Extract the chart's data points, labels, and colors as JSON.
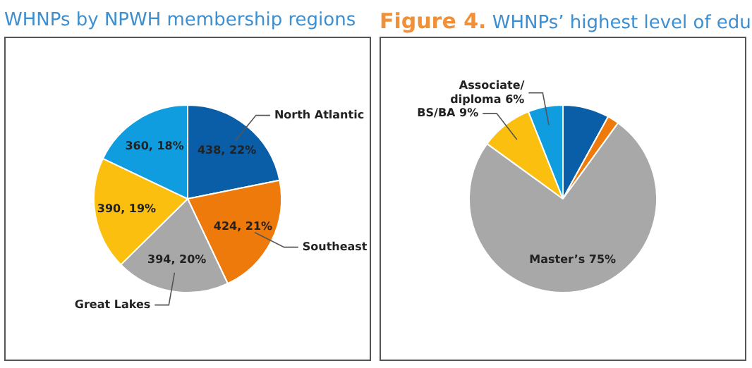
{
  "chart_data": [
    {
      "type": "pie",
      "title": "WHNPs by NPWH membership regions",
      "categories": [
        "North Atlantic",
        "Southeast",
        "Great Lakes",
        null,
        null
      ],
      "values": [
        438,
        424,
        394,
        390,
        360
      ],
      "colors": [
        "#0a5ea8",
        "#ee7a0c",
        "#a8a8a8",
        "#fbbf10",
        "#0f9de0"
      ],
      "value_labels": [
        "438, 22%",
        "424, 21%",
        "394, 20%",
        "390, 19%",
        "360, 18%"
      ],
      "legend": false
    },
    {
      "type": "pie",
      "title": "Figure 4.",
      "subtitle": "WHNPs’ highest level of edu",
      "categories": [
        null,
        null,
        null,
        null,
        null
      ],
      "values": [
        8,
        2,
        75,
        9,
        6
      ],
      "colors": [
        "#0a5ea8",
        "#ee7a0c",
        "#a8a8a8",
        "#fbbf10",
        "#0f9de0"
      ],
      "value_labels": [
        null,
        null,
        "Master’s 75%",
        "BS/BA 9%",
        "Associate/\ndiploma 6%"
      ],
      "legend": false
    }
  ]
}
